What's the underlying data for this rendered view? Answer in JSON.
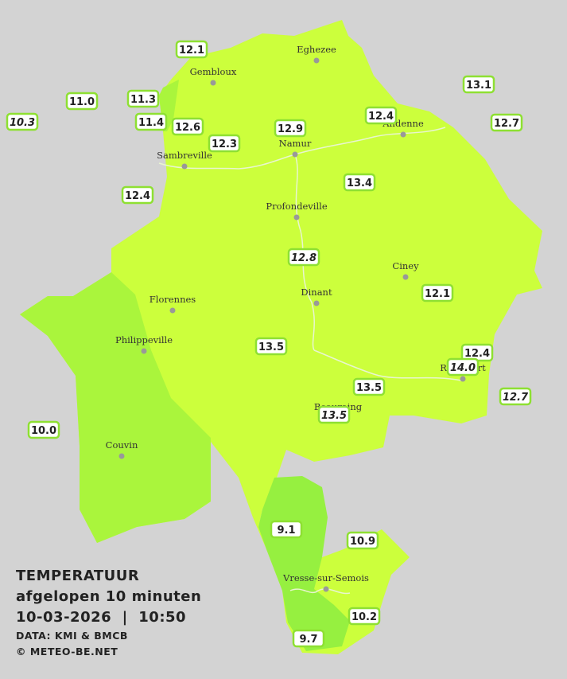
{
  "legend": {
    "title": "TEMPERATUUR",
    "subtitle": "afgelopen 10 minuten",
    "datetime": "10-03-2026  |  10:50",
    "source": "DATA: KMI & BMCB",
    "copyright": "© METEO-BE.NET"
  },
  "cities": [
    "Eghezee",
    "Gembloux",
    "Andenne",
    "Namur",
    "Sambreville",
    "Profondeville",
    "Ciney",
    "Dinant",
    "Florennes",
    "Philippeville",
    "Rochefort",
    "Beauraing",
    "Couvin",
    "Vresse-sur-Semois"
  ],
  "stations": [
    "12.1",
    "11.0",
    "11.3",
    "10.3",
    "11.4",
    "12.6",
    "12.3",
    "12.9",
    "12.4",
    "13.1",
    "12.7",
    "12.4",
    "13.4",
    "12.8",
    "12.1",
    "13.5",
    "12.4",
    "14.0",
    "13.5",
    "13.5",
    "12.7",
    "10.0",
    "9.1",
    "10.9",
    "10.2",
    "9.7"
  ]
}
